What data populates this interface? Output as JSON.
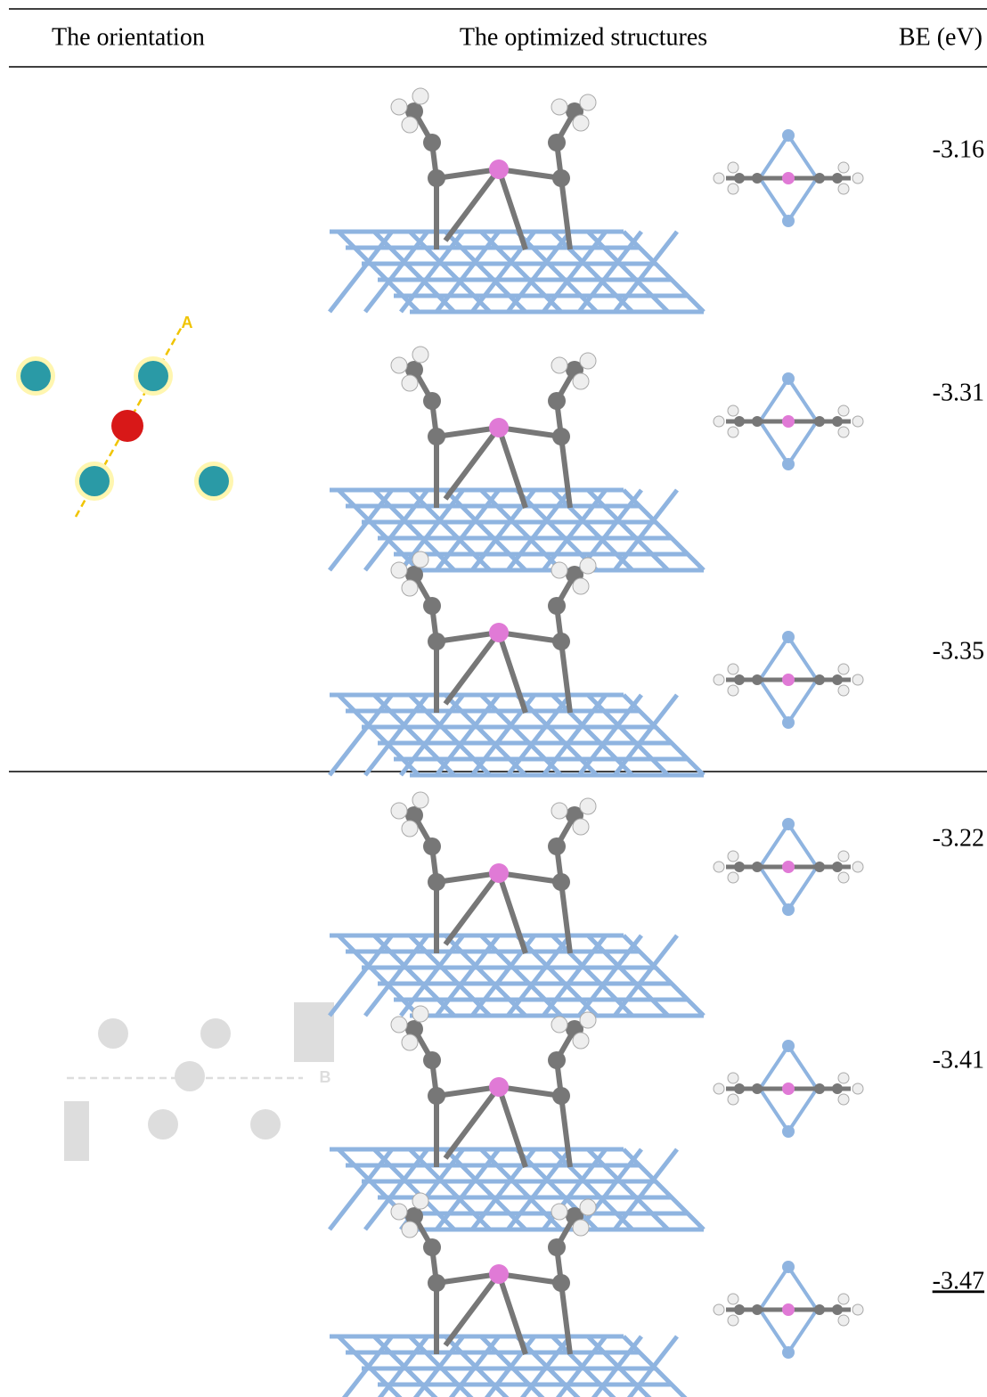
{
  "table": {
    "header": [
      "The orientation",
      "The optimized structures",
      "BE (eV)"
    ],
    "groups": [
      {
        "orientation_label": "A",
        "rows": [
          "-3.16",
          "-3.31",
          "-3.35"
        ]
      },
      {
        "orientation_label": "B",
        "rows": [
          "-3.22",
          "-3.41",
          "-3.47"
        ]
      }
    ]
  }
}
